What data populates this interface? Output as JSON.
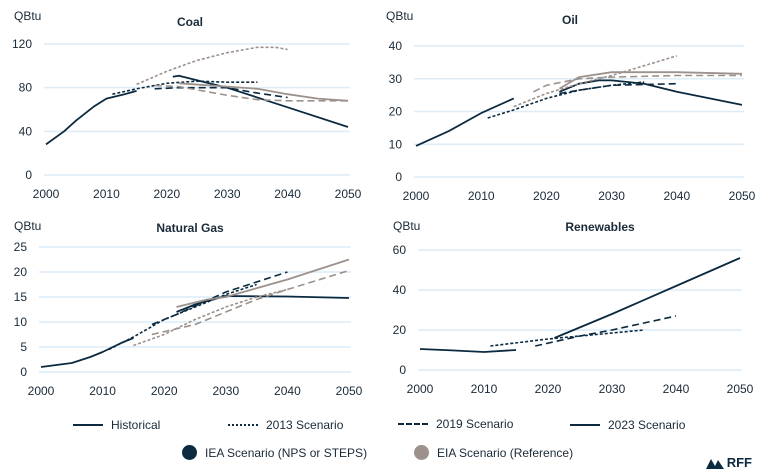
{
  "colors": {
    "iea": "#0b2a40",
    "eia": "#9c918c",
    "grid": "#dcecf8",
    "text": "#1a2a38"
  },
  "chart_data": [
    {
      "type": "line",
      "title": "Coal",
      "ylabel": "QBtu",
      "xlim": [
        2000,
        2050
      ],
      "ylim": [
        0,
        120
      ],
      "yticks": [
        0,
        40,
        80,
        120
      ],
      "xticks": [
        2000,
        2010,
        2020,
        2030,
        2040,
        2050
      ],
      "grid": true,
      "series": [
        {
          "name": "Historical",
          "agency": "IEA",
          "style": "solid",
          "x": [
            2000,
            2003,
            2005,
            2008,
            2010,
            2013,
            2015
          ],
          "y": [
            28,
            40,
            50,
            63,
            70,
            74,
            77
          ]
        },
        {
          "name": "2013 Scenario",
          "agency": "IEA",
          "style": "dotted",
          "x": [
            2011,
            2015,
            2020,
            2025,
            2030,
            2035
          ],
          "y": [
            74,
            79,
            84,
            86,
            85,
            85
          ]
        },
        {
          "name": "2019 Scenario",
          "agency": "IEA",
          "style": "dashed",
          "x": [
            2018,
            2022,
            2030,
            2035,
            2040
          ],
          "y": [
            79,
            80,
            80,
            75,
            71
          ]
        },
        {
          "name": "2023 Scenario",
          "agency": "IEA",
          "style": "solid",
          "x": [
            2021,
            2022,
            2030,
            2040,
            2050
          ],
          "y": [
            90,
            91,
            80,
            62,
            44
          ]
        },
        {
          "name": "2013 Scenario",
          "agency": "EIA",
          "style": "dotted",
          "x": [
            2015,
            2020,
            2025,
            2030,
            2035,
            2038,
            2040
          ],
          "y": [
            83,
            95,
            105,
            112,
            117,
            117,
            115
          ]
        },
        {
          "name": "2019 Scenario",
          "agency": "EIA",
          "style": "dashed",
          "x": [
            2018,
            2022,
            2030,
            2035,
            2040,
            2050
          ],
          "y": [
            82,
            81,
            73,
            69,
            68,
            68
          ]
        },
        {
          "name": "2023 Scenario",
          "agency": "EIA",
          "style": "solid",
          "x": [
            2022,
            2030,
            2035,
            2040,
            2045,
            2050
          ],
          "y": [
            84,
            81,
            79,
            74,
            70,
            68
          ]
        }
      ]
    },
    {
      "type": "line",
      "title": "Oil",
      "ylabel": "QBtu",
      "xlim": [
        2000,
        2050
      ],
      "ylim": [
        0,
        40
      ],
      "yticks": [
        0,
        10,
        20,
        30,
        40
      ],
      "xticks": [
        2000,
        2010,
        2020,
        2030,
        2040,
        2050
      ],
      "grid": true,
      "series": [
        {
          "name": "Historical",
          "agency": "IEA",
          "style": "solid",
          "x": [
            2000,
            2005,
            2010,
            2015
          ],
          "y": [
            9.5,
            14,
            19.5,
            24
          ]
        },
        {
          "name": "2013 Scenario",
          "agency": "IEA",
          "style": "dotted",
          "x": [
            2011,
            2015,
            2020,
            2025,
            2030,
            2035
          ],
          "y": [
            18,
            20.5,
            24,
            26.5,
            28,
            29
          ]
        },
        {
          "name": "2019 Scenario",
          "agency": "IEA",
          "style": "dashed",
          "x": [
            2022,
            2025,
            2030,
            2040
          ],
          "y": [
            25.5,
            26.5,
            28,
            28.5
          ]
        },
        {
          "name": "2023 Scenario",
          "agency": "IEA",
          "style": "solid",
          "x": [
            2022,
            2025,
            2028,
            2030,
            2035,
            2040,
            2050
          ],
          "y": [
            26,
            28.5,
            29.5,
            29.5,
            28.5,
            26,
            22
          ]
        },
        {
          "name": "2013 Scenario",
          "agency": "EIA",
          "style": "dotted",
          "x": [
            2015,
            2020,
            2025,
            2030,
            2035,
            2040
          ],
          "y": [
            21.5,
            25.5,
            28.5,
            31,
            34,
            37
          ]
        },
        {
          "name": "2019 Scenario",
          "agency": "EIA",
          "style": "dashed",
          "x": [
            2018,
            2020,
            2025,
            2030,
            2040,
            2050
          ],
          "y": [
            26,
            28,
            30,
            30.5,
            31,
            31
          ]
        },
        {
          "name": "2023 Scenario",
          "agency": "EIA",
          "style": "solid",
          "x": [
            2022,
            2025,
            2030,
            2040,
            2050
          ],
          "y": [
            27,
            30.5,
            32,
            32,
            31.5
          ]
        }
      ]
    },
    {
      "type": "line",
      "title": "Natural Gas",
      "ylabel": "QBtu",
      "xlim": [
        2000,
        2050
      ],
      "ylim": [
        0,
        25
      ],
      "yticks": [
        0,
        5,
        10,
        15,
        20,
        25
      ],
      "xticks": [
        2000,
        2010,
        2020,
        2030,
        2040,
        2050
      ],
      "grid": true,
      "series": [
        {
          "name": "Historical",
          "agency": "IEA",
          "style": "solid",
          "x": [
            2000,
            2005,
            2008,
            2010,
            2013,
            2015
          ],
          "y": [
            1,
            1.8,
            3,
            4,
            5.8,
            6.8
          ]
        },
        {
          "name": "2013 Scenario",
          "agency": "IEA",
          "style": "dotted",
          "x": [
            2011,
            2015,
            2020,
            2025,
            2030,
            2035
          ],
          "y": [
            4.5,
            7,
            10.5,
            13,
            15.5,
            17.5
          ]
        },
        {
          "name": "2019 Scenario",
          "agency": "IEA",
          "style": "dashed",
          "x": [
            2018,
            2022,
            2030,
            2040
          ],
          "y": [
            9.5,
            11.5,
            16,
            20
          ]
        },
        {
          "name": "2023 Scenario",
          "agency": "IEA",
          "style": "solid",
          "x": [
            2022,
            2025,
            2030,
            2040,
            2050
          ],
          "y": [
            12,
            13.5,
            15.2,
            15.1,
            14.8
          ]
        },
        {
          "name": "2013 Scenario",
          "agency": "EIA",
          "style": "dotted",
          "x": [
            2015,
            2020,
            2025,
            2030,
            2035,
            2040
          ],
          "y": [
            5.3,
            7.5,
            10.5,
            13,
            15,
            16.5
          ]
        },
        {
          "name": "2019 Scenario",
          "agency": "EIA",
          "style": "dashed",
          "x": [
            2018,
            2025,
            2030,
            2035,
            2040,
            2050
          ],
          "y": [
            7.5,
            9.5,
            12,
            14.5,
            16.5,
            20.3
          ]
        },
        {
          "name": "2023 Scenario",
          "agency": "EIA",
          "style": "solid",
          "x": [
            2022,
            2027,
            2030,
            2040,
            2050
          ],
          "y": [
            13,
            14.5,
            15,
            18.5,
            22.5
          ]
        }
      ]
    },
    {
      "type": "line",
      "title": "Renewables",
      "ylabel": "QBtu",
      "xlim": [
        2000,
        2050
      ],
      "ylim": [
        0,
        60
      ],
      "yticks": [
        0,
        20,
        40,
        60
      ],
      "xticks": [
        2000,
        2010,
        2020,
        2030,
        2040,
        2050
      ],
      "grid": true,
      "series": [
        {
          "name": "Historical",
          "agency": "IEA",
          "style": "solid",
          "x": [
            2000,
            2005,
            2010,
            2015
          ],
          "y": [
            10.5,
            9.8,
            9,
            10
          ]
        },
        {
          "name": "2013 Scenario",
          "agency": "IEA",
          "style": "dotted",
          "x": [
            2011,
            2020,
            2025,
            2030,
            2035
          ],
          "y": [
            12,
            15.5,
            17,
            18.5,
            20
          ]
        },
        {
          "name": "2019 Scenario",
          "agency": "IEA",
          "style": "dashed",
          "x": [
            2018,
            2025,
            2030,
            2040
          ],
          "y": [
            12,
            17,
            20,
            27
          ]
        },
        {
          "name": "2023 Scenario",
          "agency": "IEA",
          "style": "solid",
          "x": [
            2021,
            2030,
            2040,
            2050
          ],
          "y": [
            16,
            28,
            42,
            56
          ]
        }
      ]
    }
  ],
  "legend": {
    "styles": [
      {
        "label": "Historical",
        "style": "solid"
      },
      {
        "label": "2013 Scenario",
        "style": "dotted"
      },
      {
        "label": "2019 Scenario",
        "style": "dashed"
      },
      {
        "label": "2023 Scenario",
        "style": "solid"
      }
    ],
    "agencies": [
      {
        "label": "IEA Scenario (NPS or STEPS)",
        "color": "#0b2a40"
      },
      {
        "label": "EIA Scenario (Reference)",
        "color": "#9c918c"
      }
    ]
  },
  "logo": {
    "text": "RFF"
  }
}
